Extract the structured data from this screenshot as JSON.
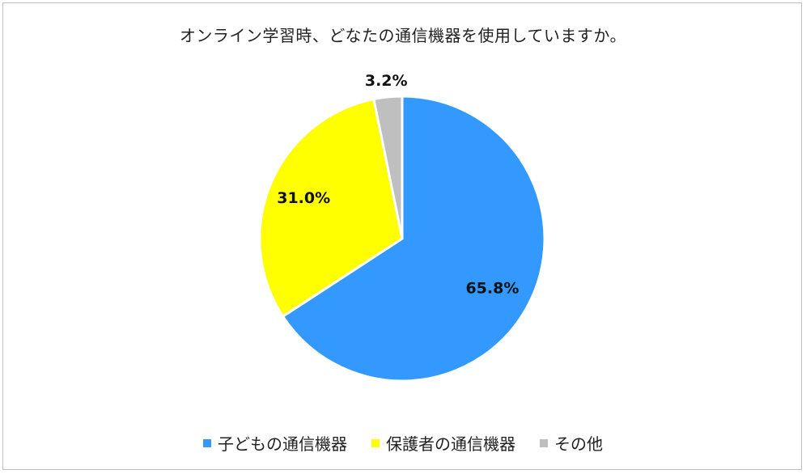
{
  "chart_data": {
    "type": "pie",
    "title": "オンライン学習時、どなたの通信機器を使用していますか。",
    "categories": [
      "子どもの通信機器",
      "保護者の通信機器",
      "その他"
    ],
    "values": [
      65.8,
      31.0,
      3.2
    ],
    "labels": [
      "65.8%",
      "31.0%",
      "3.2%"
    ],
    "colors": [
      "#3399FF",
      "#FFFF00",
      "#BFBFBF"
    ],
    "legend_position": "bottom",
    "start_angle": "12 o'clock",
    "direction": "clockwise"
  }
}
